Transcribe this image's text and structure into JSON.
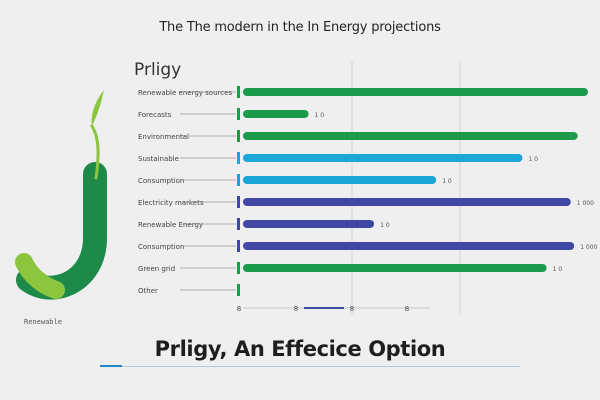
{
  "title": "The The modern in the In Energy projections",
  "brand": "Prligy",
  "footer": {
    "title": "Prligy, An Effecice Option",
    "caption": "Renewable"
  },
  "colors": {
    "green": "#1c9a4c",
    "cyan": "#1aa6d6",
    "indigo": "#4148a3",
    "leaf": "#8cc63f",
    "background": "#efefef"
  },
  "icons": {
    "logo": "j-leaf-icon"
  },
  "chart_data": {
    "type": "bar",
    "orientation": "horizontal",
    "title": "The The modern in the In Energy projections",
    "xlabel": "",
    "ylabel": "",
    "xlim": [
      0,
      100
    ],
    "grid": true,
    "categories": [
      "Renewable energy sources",
      "Forecasts",
      "Environmental",
      "Sustainable",
      "Consumption",
      "Electricity markets",
      "Renewable Energy",
      "Consumption",
      "Green grid",
      "Other"
    ],
    "values": [
      100,
      19,
      97,
      81,
      56,
      95,
      38,
      96,
      88,
      0
    ],
    "value_labels": [
      "",
      "1 0",
      "",
      "1 0",
      "1 0",
      "1 000",
      "1 0",
      "1 000",
      "1 0",
      ""
    ],
    "bar_colors": [
      "#1c9a4c",
      "#1c9a4c",
      "#1c9a4c",
      "#1aa6d6",
      "#1aa6d6",
      "#4148a3",
      "#4148a3",
      "#4148a3",
      "#1c9a4c",
      "#1c9a4c"
    ],
    "x_tick_labels": [
      "8",
      "8",
      "8",
      "8"
    ]
  }
}
